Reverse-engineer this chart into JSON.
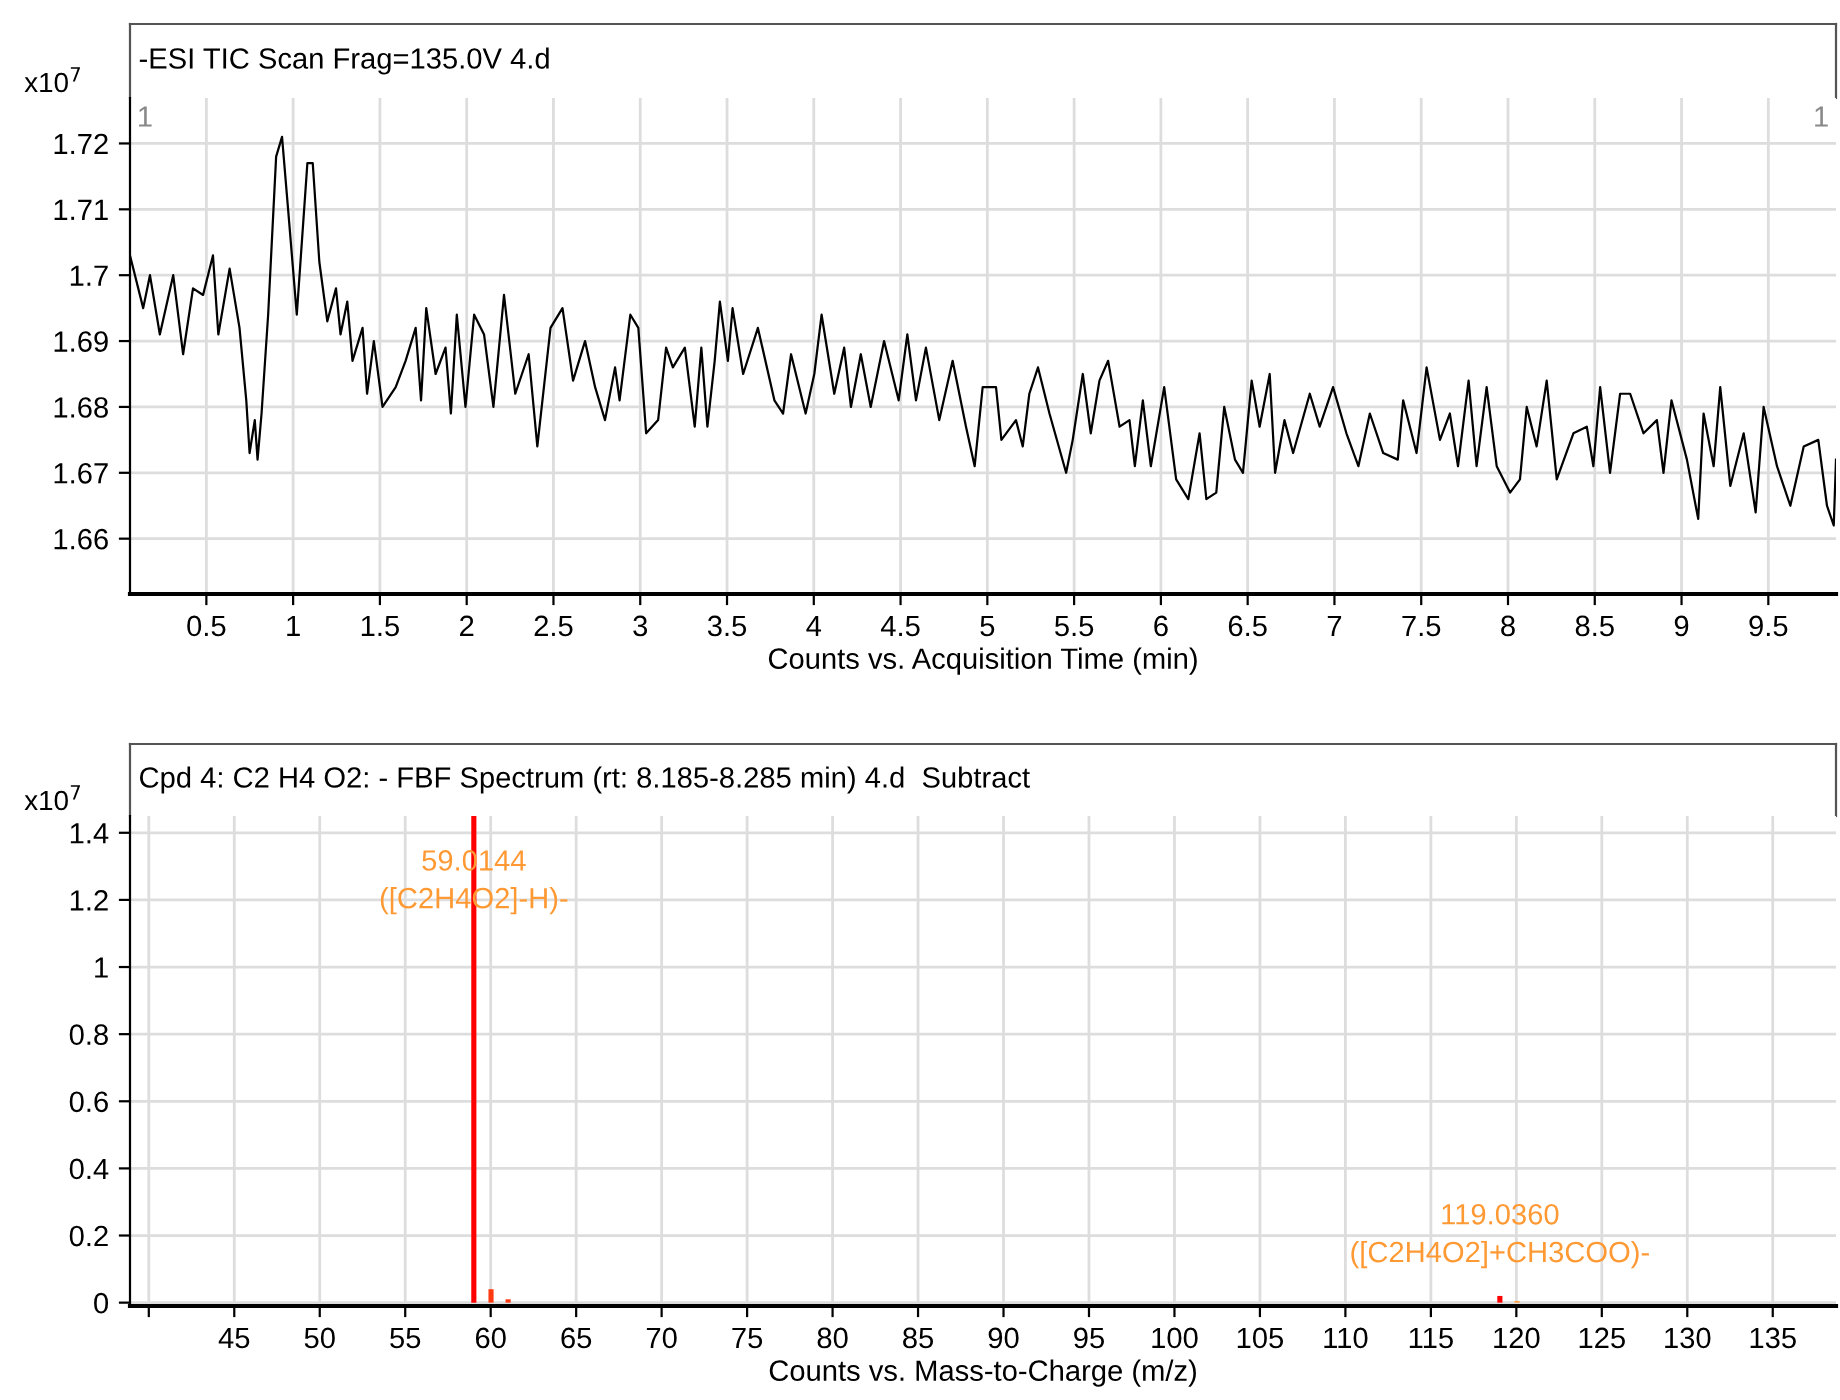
{
  "chart_data": [
    {
      "type": "line",
      "title": "-ESI TIC Scan Frag=135.0V 4.d",
      "xlabel": "Counts vs. Acquisition Time (min)",
      "ylabel": "x10$^{7}$",
      "series": [
        {
          "color": "#000000",
          "x": [
            0.06,
            0.136,
            0.175,
            0.232,
            0.309,
            0.366,
            0.423,
            0.481,
            0.538,
            0.569,
            0.634,
            0.691,
            0.73,
            0.749,
            0.779,
            0.795,
            0.818,
            0.856,
            0.902,
            0.936,
            0.971,
            1.021,
            1.082,
            1.113,
            1.151,
            1.197,
            1.247,
            1.273,
            1.312,
            1.342,
            1.4,
            1.426,
            1.465,
            1.515,
            1.591,
            1.648,
            1.706,
            1.737,
            1.767,
            1.821,
            1.878,
            1.909,
            1.943,
            1.993,
            2.043,
            2.1,
            2.154,
            2.215,
            2.28,
            2.357,
            2.407,
            2.445,
            2.483,
            2.552,
            2.613,
            2.682,
            2.74,
            2.797,
            2.855,
            2.881,
            2.943,
            2.989,
            3.034,
            3.103,
            3.149,
            3.188,
            3.257,
            3.314,
            3.352,
            3.387,
            3.429,
            3.459,
            3.505,
            3.532,
            3.593,
            3.678,
            3.773,
            3.823,
            3.869,
            3.953,
            4.003,
            4.045,
            4.118,
            4.175,
            4.214,
            4.271,
            4.328,
            4.405,
            4.489,
            4.539,
            4.589,
            4.646,
            4.723,
            4.8,
            4.877,
            4.927,
            4.973,
            5.05,
            5.081,
            5.165,
            5.204,
            5.242,
            5.292,
            5.358,
            5.454,
            5.492,
            5.55,
            5.596,
            5.646,
            5.696,
            5.762,
            5.819,
            5.85,
            5.896,
            5.942,
            6.019,
            6.088,
            6.158,
            6.223,
            6.262,
            6.319,
            6.365,
            6.427,
            6.473,
            6.523,
            6.569,
            6.627,
            6.658,
            6.712,
            6.762,
            6.858,
            6.915,
            6.992,
            7.069,
            7.138,
            7.204,
            7.281,
            7.365,
            7.396,
            7.473,
            7.531,
            7.608,
            7.665,
            7.712,
            7.773,
            7.819,
            7.877,
            7.935,
            8.012,
            8.069,
            8.108,
            8.165,
            8.223,
            8.281,
            8.377,
            8.454,
            8.492,
            8.531,
            8.588,
            8.646,
            8.704,
            8.781,
            8.858,
            8.896,
            8.942,
            9.031,
            9.096,
            9.127,
            9.185,
            9.223,
            9.281,
            9.358,
            9.427,
            9.473,
            9.55,
            9.627,
            9.704,
            9.788,
            9.838,
            9.877,
            9.89
          ],
          "values": [
            1.703,
            1.695,
            1.7,
            1.691,
            1.7,
            1.688,
            1.698,
            1.697,
            1.703,
            1.691,
            1.701,
            1.692,
            1.681,
            1.673,
            1.678,
            1.672,
            1.679,
            1.694,
            1.718,
            1.721,
            1.71,
            1.694,
            1.717,
            1.717,
            1.702,
            1.693,
            1.698,
            1.691,
            1.696,
            1.687,
            1.692,
            1.682,
            1.69,
            1.68,
            1.683,
            1.687,
            1.692,
            1.681,
            1.695,
            1.685,
            1.689,
            1.679,
            1.694,
            1.68,
            1.694,
            1.691,
            1.68,
            1.697,
            1.682,
            1.688,
            1.674,
            1.683,
            1.692,
            1.695,
            1.684,
            1.69,
            1.683,
            1.678,
            1.686,
            1.681,
            1.694,
            1.692,
            1.676,
            1.678,
            1.689,
            1.686,
            1.689,
            1.677,
            1.689,
            1.677,
            1.687,
            1.696,
            1.687,
            1.695,
            1.685,
            1.692,
            1.681,
            1.679,
            1.688,
            1.679,
            1.685,
            1.694,
            1.682,
            1.689,
            1.68,
            1.688,
            1.68,
            1.69,
            1.681,
            1.691,
            1.681,
            1.689,
            1.678,
            1.687,
            1.677,
            1.671,
            1.683,
            1.683,
            1.675,
            1.678,
            1.674,
            1.682,
            1.686,
            1.679,
            1.67,
            1.675,
            1.685,
            1.676,
            1.684,
            1.687,
            1.677,
            1.678,
            1.671,
            1.681,
            1.671,
            1.683,
            1.669,
            1.666,
            1.676,
            1.666,
            1.667,
            1.68,
            1.672,
            1.67,
            1.684,
            1.677,
            1.685,
            1.67,
            1.678,
            1.673,
            1.682,
            1.677,
            1.683,
            1.676,
            1.671,
            1.679,
            1.673,
            1.672,
            1.681,
            1.673,
            1.686,
            1.675,
            1.679,
            1.671,
            1.684,
            1.671,
            1.683,
            1.671,
            1.667,
            1.669,
            1.68,
            1.674,
            1.684,
            1.669,
            1.676,
            1.677,
            1.671,
            1.683,
            1.67,
            1.682,
            1.682,
            1.676,
            1.678,
            1.67,
            1.681,
            1.672,
            1.663,
            1.679,
            1.671,
            1.683,
            1.668,
            1.676,
            1.664,
            1.68,
            1.671,
            1.665,
            1.674,
            1.675,
            1.665,
            1.662,
            1.672
          ]
        }
      ],
      "xlim": [
        0.06,
        9.89
      ],
      "xticks": [
        0.5,
        1,
        1.5,
        2,
        2.5,
        3,
        3.5,
        4,
        4.5,
        5,
        5.5,
        6,
        6.5,
        7,
        7.5,
        8,
        8.5,
        9,
        9.5
      ],
      "ylim": [
        1.6516,
        1.7269
      ],
      "yticks": [
        1.66,
        1.67,
        1.68,
        1.69,
        1.7,
        1.71,
        1.72
      ],
      "grid": true,
      "annotations": [
        "1",
        "1"
      ]
    },
    {
      "type": "bar",
      "title": "Cpd 4: C2 H4 O2: - FBF Spectrum (rt: 8.185-8.285 min) 4.d  Subtract",
      "xlabel": "Counts vs. Mass-to-Charge (m/z)",
      "ylabel": "x10$^{7}$",
      "x": [
        59.0144,
        60.02,
        61.02,
        119.036,
        120.04
      ],
      "values": [
        1.45,
        0.04,
        0.01,
        0.02,
        0.005
      ],
      "colors": [
        "#ff0000",
        "#ff3a10",
        "#ff3a10",
        "#ff0000",
        "#ffa040"
      ],
      "xlim": [
        38.9,
        138.7
      ],
      "xticks": [
        {
          "value": 40,
          "label": null
        },
        45,
        50,
        55,
        60,
        65,
        70,
        75,
        80,
        85,
        90,
        95,
        100,
        105,
        110,
        115,
        120,
        125,
        130,
        135
      ],
      "ylim": [
        -0.01,
        1.45
      ],
      "yticks": [
        0,
        0.2,
        0.4,
        0.6,
        0.8,
        1,
        1.2,
        1.4
      ],
      "grid": true,
      "annotations": [
        {
          "text": "59.0144\n([C2H4O2]-H)-",
          "x": 59.0144,
          "y": 1.45
        },
        {
          "text": "119.0360\n([C2H4O2]+CH3COO)-",
          "x": 119.036,
          "y": 0.02
        }
      ]
    }
  ]
}
